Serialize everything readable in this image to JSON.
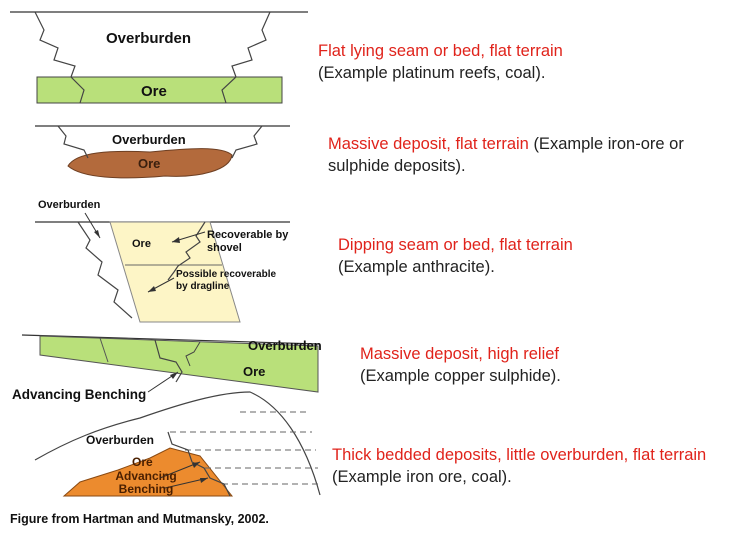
{
  "diagrams": [
    {
      "labels": {
        "overburden": "Overburden",
        "ore": "Ore"
      },
      "description": {
        "red": "Flat lying seam or bed, flat terrain",
        "black": "(Example platinum reefs, coal)."
      }
    },
    {
      "labels": {
        "overburden": "Overburden",
        "ore": "Ore"
      },
      "description": {
        "red": "Massive deposit, flat terrain",
        "black": "(Example iron-ore or sulphide deposits)."
      }
    },
    {
      "labels": {
        "overburden": "Overburden",
        "ore": "Ore",
        "shovel": "Recoverable by shovel",
        "dragline": "Possible recoverable by dragline"
      },
      "description": {
        "red": "Dipping seam or bed, flat terrain",
        "black": "(Example anthracite)."
      }
    },
    {
      "labels": {
        "overburden": "Overburden",
        "ore": "Ore",
        "title": "Advancing Benching"
      },
      "description": {
        "red": "Massive deposit, high relief",
        "black": "(Example copper sulphide)."
      }
    },
    {
      "labels": {
        "overburden": "Overburden",
        "ore": "Ore",
        "benching": "Advancing Benching"
      },
      "description": {
        "red": "Thick bedded deposits, little overburden, flat terrain",
        "black": "(Example iron ore, coal)."
      }
    }
  ],
  "caption": "Figure from Hartman and Mutmansky, 2002.",
  "colors": {
    "green": "#b9e07a",
    "brown": "#b36a3c",
    "yellow": "#fdf5c6",
    "orange": "#ec8b2e",
    "red": "#e0231b"
  }
}
